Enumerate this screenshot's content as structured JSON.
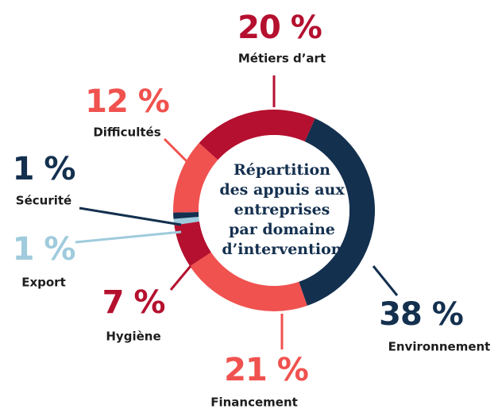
{
  "chart_data": {
    "type": "donut",
    "title": [
      "Répartition",
      "des appuis aux",
      "entreprises",
      "par domaine",
      "d’intervention"
    ],
    "categories": [
      "Environnement",
      "Financement",
      "Hygiène",
      "Export",
      "Sécurité",
      "Difficultés",
      "Métiers d’art"
    ],
    "values": [
      38,
      21,
      7,
      1,
      1,
      12,
      20
    ],
    "value_labels": [
      "38 %",
      "21 %",
      "7 %",
      "1 %",
      "1 %",
      "12 %",
      "20 %"
    ],
    "colors": [
      "#14304f",
      "#f0524f",
      "#b5102f",
      "#9fcbdc",
      "#14304f",
      "#f0524f",
      "#b5102f"
    ]
  }
}
